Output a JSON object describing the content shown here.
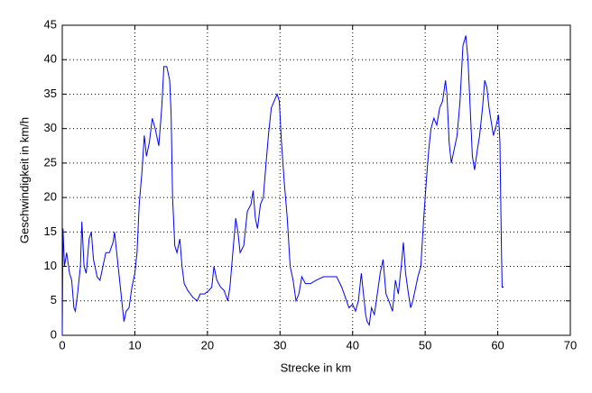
{
  "chart_data": {
    "type": "line",
    "xlabel": "Strecke in km",
    "ylabel": "Geschwindigkeit in km/h",
    "xlim": [
      0,
      70
    ],
    "ylim": [
      0,
      45
    ],
    "xticks": [
      0,
      10,
      20,
      30,
      40,
      50,
      60,
      70
    ],
    "yticks": [
      0,
      5,
      10,
      15,
      20,
      25,
      30,
      35,
      40,
      45
    ],
    "grid": true,
    "series": [
      {
        "color": "#0000ff",
        "x": [
          0,
          0.1,
          0.3,
          0.6,
          1,
          1.3,
          1.6,
          1.8,
          2.1,
          2.5,
          2.7,
          3,
          3.3,
          3.7,
          4,
          4.3,
          4.8,
          5.2,
          5.6,
          6,
          6.5,
          7,
          7.2,
          7.6,
          8,
          8.3,
          8.5,
          8.8,
          9.2,
          9.6,
          10,
          10.3,
          10.6,
          11,
          11.3,
          11.6,
          12,
          12.4,
          12.8,
          13.3,
          13.7,
          14,
          14.4,
          14.8,
          15,
          15.2,
          15.5,
          15.8,
          16.2,
          16.5,
          16.8,
          17.3,
          18,
          18.6,
          19,
          19.6,
          20.2,
          20.6,
          20.9,
          21.3,
          21.8,
          22.3,
          22.8,
          23.1,
          23.5,
          23.9,
          24.2,
          24.5,
          25,
          25.5,
          26,
          26.3,
          26.6,
          26.9,
          27.3,
          27.7,
          28,
          28.4,
          28.8,
          29.2,
          29.6,
          29.9,
          30.2,
          30.6,
          31,
          31.4,
          31.8,
          32.2,
          32.6,
          33,
          33.5,
          34.2,
          35,
          36,
          37,
          37.8,
          38.5,
          39,
          39.5,
          40,
          40.4,
          40.8,
          41.2,
          41.5,
          41.8,
          42,
          42.3,
          42.6,
          43,
          43.4,
          43.8,
          44.2,
          44.6,
          45,
          45.5,
          45.9,
          46.3,
          46.7,
          47,
          47.3,
          47.7,
          48,
          48.3,
          48.7,
          49,
          49.4,
          49.8,
          50.2,
          50.5,
          50.8,
          51.2,
          51.6,
          52,
          52.4,
          52.8,
          53,
          53.3,
          53.6,
          54,
          54.4,
          54.8,
          55.2,
          55.6,
          55.9,
          56.2,
          56.5,
          56.8,
          57.2,
          57.5,
          57.9,
          58.2,
          58.5,
          58.8,
          59.1,
          59.4,
          59.8,
          60.1,
          60.3,
          60.5,
          60.6,
          60.8
        ],
        "values": [
          0,
          15.5,
          10,
          12,
          9,
          8,
          4,
          3.5,
          6,
          10,
          16.5,
          10,
          9,
          14,
          15,
          11,
          8.5,
          8,
          10,
          12,
          12,
          13.5,
          15,
          11,
          7,
          4,
          2,
          3.5,
          4,
          7,
          9,
          12,
          19,
          24,
          29,
          26,
          28,
          31.5,
          30,
          27.5,
          33,
          39,
          39,
          37,
          32,
          20,
          13,
          12,
          14,
          10,
          7.5,
          6.5,
          5.5,
          5,
          6,
          6,
          6.5,
          7,
          10,
          8,
          7,
          6.5,
          5,
          7,
          12,
          17,
          15,
          12,
          13,
          18,
          19,
          21,
          17,
          15.5,
          19,
          20,
          24,
          29,
          33,
          34,
          35,
          34,
          28,
          22,
          17,
          10,
          8,
          5,
          6,
          8.5,
          7.5,
          7.5,
          8,
          8.5,
          8.5,
          8.5,
          7,
          5.5,
          4,
          4.5,
          3.5,
          5,
          9,
          6,
          3,
          2,
          1.5,
          4,
          3,
          6,
          9,
          11,
          6,
          5,
          3.5,
          8,
          6,
          10,
          13.5,
          9,
          6,
          4,
          5,
          7,
          8.5,
          10,
          17,
          23,
          27,
          30,
          31.5,
          30.5,
          33,
          34,
          37,
          35,
          28,
          25,
          27,
          29,
          34,
          42,
          43.5,
          40,
          33,
          26,
          24,
          27,
          29,
          33,
          37,
          36,
          33,
          31,
          29,
          30.5,
          32,
          28,
          13,
          7,
          7
        ]
      }
    ]
  }
}
